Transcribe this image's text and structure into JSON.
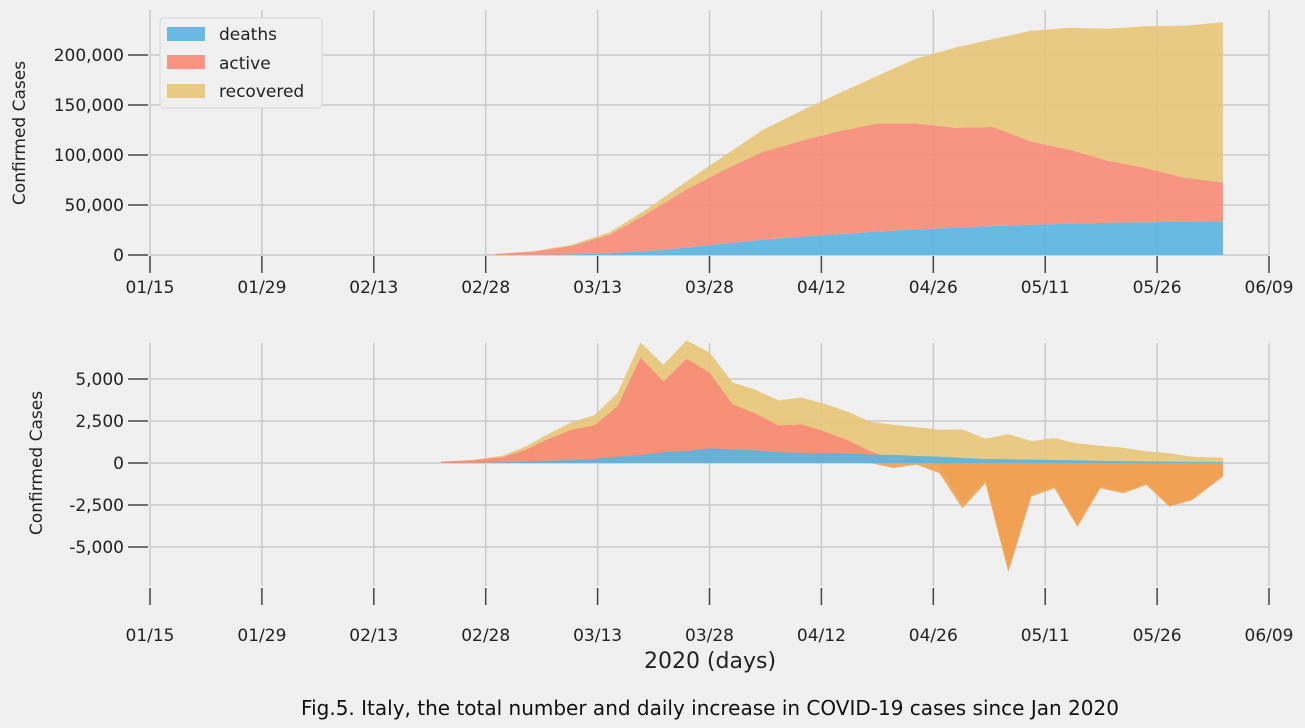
{
  "figure": {
    "xlabel": "2020 (days)",
    "caption": "Fig.5. Italy, the total number and daily increase in COVID-19 cases since Jan 2020"
  },
  "colors": {
    "deaths": "#5ab4e0",
    "active": "#f78b76",
    "recovered": "#e8c577",
    "negative_overlap": "#eea24f",
    "grid": "#cbcbcb",
    "background": "#f0f0f0"
  },
  "chart_data": [
    {
      "type": "area",
      "stacked": true,
      "title": "",
      "xlabel": "",
      "ylabel": "Confirmed Cases",
      "x_ticks": [
        "01/15",
        "01/29",
        "02/13",
        "02/28",
        "03/13",
        "03/28",
        "04/12",
        "04/26",
        "05/11",
        "05/26",
        "06/09"
      ],
      "y_ticks": [
        "0",
        "50,000",
        "100,000",
        "150,000",
        "200,000"
      ],
      "y_tick_values": [
        0,
        50000,
        100000,
        150000,
        200000
      ],
      "ylim": [
        -5000,
        245000
      ],
      "xlim": [
        "2020-01-15",
        "2020-06-09"
      ],
      "grid": true,
      "legend": "top-left",
      "x_dates": [
        "2020-02-29",
        "2020-03-05",
        "2020-03-10",
        "2020-03-15",
        "2020-03-20",
        "2020-03-25",
        "2020-03-30",
        "2020-04-04",
        "2020-04-09",
        "2020-04-14",
        "2020-04-19",
        "2020-04-24",
        "2020-04-29",
        "2020-05-04",
        "2020-05-09",
        "2020-05-14",
        "2020-05-19",
        "2020-05-24",
        "2020-05-29",
        "2020-06-03"
      ],
      "series": [
        {
          "name": "deaths",
          "values": [
            20,
            150,
            630,
            1800,
            4000,
            7500,
            11500,
            15300,
            18300,
            21000,
            23500,
            25500,
            27300,
            29000,
            30300,
            31300,
            32200,
            32800,
            33300,
            33600
          ]
        },
        {
          "name": "active",
          "values": [
            1000,
            3200,
            8500,
            18700,
            38000,
            58000,
            74000,
            88000,
            96000,
            103000,
            108000,
            106000,
            100000,
            99000,
            83000,
            74000,
            62000,
            54000,
            44000,
            39000
          ]
        },
        {
          "name": "recovered",
          "values": [
            50,
            400,
            1000,
            2300,
            4700,
            8000,
            14000,
            22000,
            30000,
            38000,
            48000,
            65000,
            80000,
            88000,
            111000,
            122000,
            132000,
            142000,
            152000,
            160000
          ]
        }
      ]
    },
    {
      "type": "area",
      "title": "",
      "xlabel": "2020 (days)",
      "ylabel": "Confirmed Cases",
      "x_ticks": [
        "01/15",
        "01/29",
        "02/13",
        "02/28",
        "03/13",
        "03/28",
        "04/12",
        "04/26",
        "05/11",
        "05/26",
        "06/09"
      ],
      "y_ticks": [
        "-5,000",
        "-2,500",
        "0",
        "2,500",
        "5,000"
      ],
      "y_tick_values": [
        -5000,
        -2500,
        0,
        2500,
        5000
      ],
      "ylim": [
        -7500,
        7000
      ],
      "xlim": [
        "2020-01-15",
        "2020-06-09"
      ],
      "grid": true,
      "x_dates": [
        "2020-02-22",
        "2020-02-26",
        "2020-03-01",
        "2020-03-04",
        "2020-03-07",
        "2020-03-10",
        "2020-03-13",
        "2020-03-16",
        "2020-03-19",
        "2020-03-22",
        "2020-03-25",
        "2020-03-28",
        "2020-03-31",
        "2020-04-03",
        "2020-04-06",
        "2020-04-09",
        "2020-04-12",
        "2020-04-15",
        "2020-04-18",
        "2020-04-21",
        "2020-04-24",
        "2020-04-27",
        "2020-04-30",
        "2020-05-03",
        "2020-05-06",
        "2020-05-09",
        "2020-05-12",
        "2020-05-15",
        "2020-05-18",
        "2020-05-21",
        "2020-05-24",
        "2020-05-27",
        "2020-05-30",
        "2020-06-03"
      ],
      "series": [
        {
          "name": "deaths",
          "values": [
            5,
            15,
            40,
            80,
            130,
            170,
            250,
            370,
            470,
            650,
            700,
            880,
            800,
            750,
            630,
            600,
            580,
            560,
            500,
            480,
            420,
            380,
            300,
            240,
            220,
            200,
            180,
            160,
            130,
            110,
            90,
            80,
            70,
            60
          ]
        },
        {
          "name": "active",
          "values": [
            80,
            150,
            300,
            700,
            1300,
            1800,
            2000,
            3000,
            5800,
            4200,
            5500,
            4500,
            2700,
            2200,
            1600,
            1700,
            1300,
            800,
            200,
            -300,
            -100,
            -600,
            -2700,
            -1200,
            -6500,
            -2000,
            -1500,
            -3800,
            -1500,
            -1800,
            -1300,
            -2600,
            -2200,
            -800
          ]
        },
        {
          "name": "recovered",
          "values": [
            0,
            5,
            100,
            200,
            300,
            450,
            600,
            800,
            900,
            1000,
            1100,
            1200,
            1300,
            1400,
            1500,
            1600,
            1650,
            1700,
            1750,
            1800,
            1700,
            1600,
            1700,
            1200,
            1500,
            1100,
            1300,
            1000,
            900,
            800,
            600,
            500,
            300,
            250
          ]
        }
      ]
    }
  ]
}
